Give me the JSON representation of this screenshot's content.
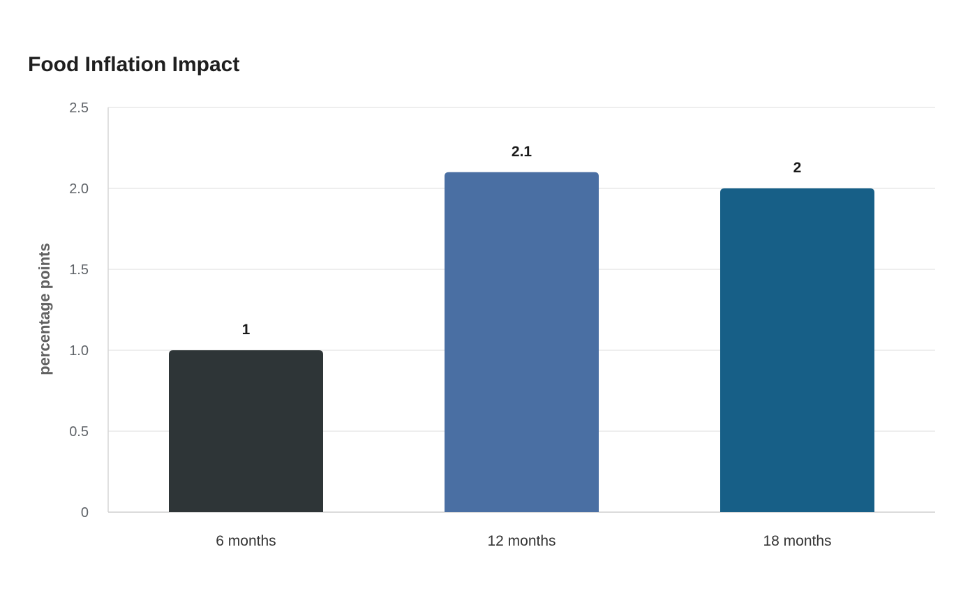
{
  "chart_data": {
    "type": "bar",
    "title": "Food Inflation Impact",
    "xlabel": "",
    "ylabel": "percentage points",
    "categories": [
      "6 months",
      "12 months",
      "18 months"
    ],
    "values": [
      1,
      2.1,
      2
    ],
    "data_labels": [
      "1",
      "2.1",
      "2"
    ],
    "colors": [
      "#2e3537",
      "#4a6fa3",
      "#175f87"
    ],
    "ylim": [
      0,
      2.5
    ],
    "yticks": [
      0,
      0.5,
      1.0,
      1.5,
      2.0,
      2.5
    ],
    "ytick_labels": [
      "0",
      "0.5",
      "1.0",
      "1.5",
      "2.0",
      "2.5"
    ],
    "grid": true,
    "legend": "none"
  }
}
